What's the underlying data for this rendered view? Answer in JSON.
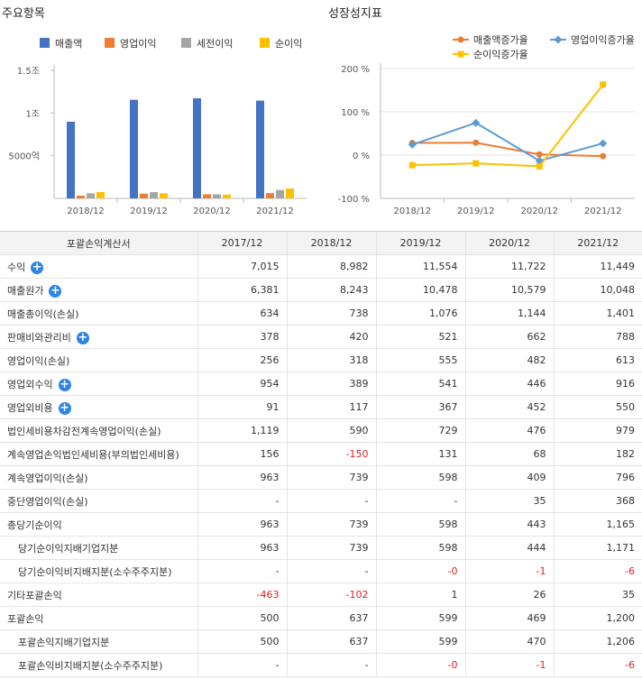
{
  "left_title": "주요항목",
  "right_title": "성장성지표",
  "chart_data": [
    {
      "type": "bar",
      "categories": [
        "2018/12",
        "2019/12",
        "2020/12",
        "2021/12"
      ],
      "series": [
        {
          "name": "매출액",
          "color": "#4472c4",
          "values": [
            8982,
            11554,
            11722,
            11449
          ]
        },
        {
          "name": "영업이익",
          "color": "#ed7d31",
          "values": [
            318,
            555,
            482,
            613
          ]
        },
        {
          "name": "세전이익",
          "color": "#a5a5a5",
          "values": [
            590,
            729,
            476,
            979
          ]
        },
        {
          "name": "순이익",
          "color": "#ffc000",
          "values": [
            739,
            598,
            443,
            1165
          ]
        }
      ],
      "ylim": [
        0,
        15000
      ],
      "yticks": [
        {
          "value": 5000,
          "label": "5000억"
        },
        {
          "value": 10000,
          "label": "1조"
        },
        {
          "value": 15000,
          "label": "1.5조"
        }
      ]
    },
    {
      "type": "line",
      "categories": [
        "2018/12",
        "2019/12",
        "2020/12",
        "2021/12"
      ],
      "series": [
        {
          "name": "매출액증가율",
          "color": "#ed7d31",
          "marker": "circle",
          "values": [
            28.0,
            28.6,
            1.5,
            -2.3
          ]
        },
        {
          "name": "영업이익증가율",
          "color": "#5b9bd5",
          "marker": "diamond",
          "values": [
            24.2,
            74.5,
            -13.2,
            27.2
          ]
        },
        {
          "name": "순이익증가율",
          "color": "#ffc000",
          "marker": "square",
          "values": [
            -23.3,
            -19.1,
            -25.9,
            163.0
          ]
        }
      ],
      "ylim": [
        -100,
        200
      ],
      "yticks": [
        {
          "value": 200,
          "label": "200 %"
        },
        {
          "value": 100,
          "label": "100 %"
        },
        {
          "value": 0,
          "label": "0 %"
        },
        {
          "value": -100,
          "label": "-100 %"
        }
      ]
    }
  ],
  "table": {
    "header": [
      "포괄손익계산서",
      "2017/12",
      "2018/12",
      "2019/12",
      "2020/12",
      "2021/12"
    ],
    "rows": [
      {
        "label": "수익",
        "plus": true,
        "sub": false,
        "values": [
          "7,015",
          "8,982",
          "11,554",
          "11,722",
          "11,449"
        ]
      },
      {
        "label": "매출원가",
        "plus": true,
        "sub": false,
        "values": [
          "6,381",
          "8,243",
          "10,478",
          "10,579",
          "10,048"
        ]
      },
      {
        "label": "매출총이익(손실)",
        "plus": false,
        "sub": false,
        "values": [
          "634",
          "738",
          "1,076",
          "1,144",
          "1,401"
        ]
      },
      {
        "label": "판매비와관리비",
        "plus": true,
        "sub": false,
        "values": [
          "378",
          "420",
          "521",
          "662",
          "788"
        ]
      },
      {
        "label": "영업이익(손실)",
        "plus": false,
        "sub": false,
        "values": [
          "256",
          "318",
          "555",
          "482",
          "613"
        ]
      },
      {
        "label": "영업외수익",
        "plus": true,
        "sub": false,
        "values": [
          "954",
          "389",
          "541",
          "446",
          "916"
        ]
      },
      {
        "label": "영업외비용",
        "plus": true,
        "sub": false,
        "values": [
          "91",
          "117",
          "367",
          "452",
          "550"
        ]
      },
      {
        "label": "법인세비용차감전계속영업이익(손실)",
        "plus": false,
        "sub": false,
        "values": [
          "1,119",
          "590",
          "729",
          "476",
          "979"
        ]
      },
      {
        "label": "계속영업손익법인세비용(부의법인세비용)",
        "plus": false,
        "sub": false,
        "values": [
          "156",
          "-150",
          "131",
          "68",
          "182"
        ]
      },
      {
        "label": "계속영업이익(손실)",
        "plus": false,
        "sub": false,
        "values": [
          "963",
          "739",
          "598",
          "409",
          "796"
        ]
      },
      {
        "label": "중단영업이익(손실)",
        "plus": false,
        "sub": false,
        "values": [
          "-",
          "-",
          "-",
          "35",
          "368"
        ]
      },
      {
        "label": "총당기순이익",
        "plus": false,
        "sub": false,
        "values": [
          "963",
          "739",
          "598",
          "443",
          "1,165"
        ]
      },
      {
        "label": "당기순이익지배기업지분",
        "plus": false,
        "sub": true,
        "values": [
          "963",
          "739",
          "598",
          "444",
          "1,171"
        ]
      },
      {
        "label": "당기순이익비지배지분(소수주주지분)",
        "plus": false,
        "sub": true,
        "values": [
          "-",
          "-",
          "-0",
          "-1",
          "-6"
        ]
      },
      {
        "label": "기타포괄손익",
        "plus": false,
        "sub": false,
        "values": [
          "-463",
          "-102",
          "1",
          "26",
          "35"
        ]
      },
      {
        "label": "포괄손익",
        "plus": false,
        "sub": false,
        "values": [
          "500",
          "637",
          "599",
          "469",
          "1,200"
        ]
      },
      {
        "label": "포괄손익지배기업지분",
        "plus": false,
        "sub": true,
        "values": [
          "500",
          "637",
          "599",
          "470",
          "1,206"
        ]
      },
      {
        "label": "포괄손익비지배지분(소수주주지분)",
        "plus": false,
        "sub": true,
        "values": [
          "-",
          "-",
          "-0",
          "-1",
          "-6"
        ]
      }
    ]
  }
}
